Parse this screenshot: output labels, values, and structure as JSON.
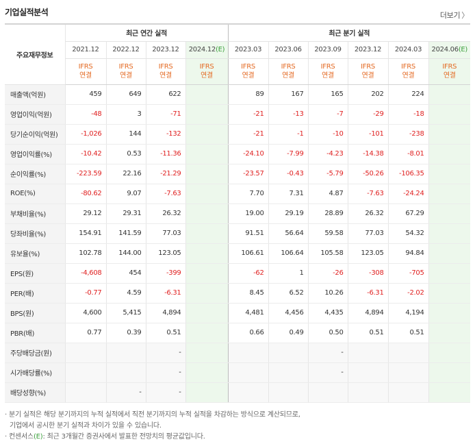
{
  "header": {
    "title": "기업실적분석",
    "more_label": "더보기",
    "more_arrow": "〉"
  },
  "table": {
    "row_header_label": "주요재무정보",
    "annual_group_label": "최근 연간 실적",
    "quarter_group_label": "최근 분기 실적",
    "annual_periods": [
      "2021.12",
      "2022.12",
      "2023.12",
      "2024.12"
    ],
    "quarter_periods": [
      "2023.03",
      "2023.06",
      "2023.09",
      "2023.12",
      "2024.03",
      "2024.06"
    ],
    "estimate_mark": "(E)",
    "basis_line1": "IFRS",
    "basis_line2": "연결",
    "rows": [
      {
        "label": "매출액(억원)",
        "annual": [
          "459",
          "649",
          "622",
          ""
        ],
        "quarter": [
          "89",
          "167",
          "165",
          "202",
          "224",
          ""
        ]
      },
      {
        "label": "영업이익(억원)",
        "annual": [
          "-48",
          "3",
          "-71",
          ""
        ],
        "quarter": [
          "-21",
          "-13",
          "-7",
          "-29",
          "-18",
          ""
        ]
      },
      {
        "label": "당기순이익(억원)",
        "annual": [
          "-1,026",
          "144",
          "-132",
          ""
        ],
        "quarter": [
          "-21",
          "-1",
          "-10",
          "-101",
          "-238",
          ""
        ]
      },
      {
        "label": "영업이익률(%)",
        "annual": [
          "-10.42",
          "0.53",
          "-11.36",
          ""
        ],
        "quarter": [
          "-24.10",
          "-7.99",
          "-4.23",
          "-14.38",
          "-8.01",
          ""
        ]
      },
      {
        "label": "순이익률(%)",
        "annual": [
          "-223.59",
          "22.16",
          "-21.29",
          ""
        ],
        "quarter": [
          "-23.57",
          "-0.43",
          "-5.79",
          "-50.26",
          "-106.35",
          ""
        ]
      },
      {
        "label": "ROE(%)",
        "annual": [
          "-80.62",
          "9.07",
          "-7.63",
          ""
        ],
        "quarter": [
          "7.70",
          "7.31",
          "4.87",
          "-7.63",
          "-24.24",
          ""
        ]
      },
      {
        "label": "부채비율(%)",
        "annual": [
          "29.12",
          "29.31",
          "26.32",
          ""
        ],
        "quarter": [
          "19.00",
          "29.19",
          "28.89",
          "26.32",
          "67.29",
          ""
        ]
      },
      {
        "label": "당좌비율(%)",
        "annual": [
          "154.91",
          "141.59",
          "77.03",
          ""
        ],
        "quarter": [
          "91.51",
          "56.64",
          "59.58",
          "77.03",
          "54.32",
          ""
        ]
      },
      {
        "label": "유보율(%)",
        "annual": [
          "102.78",
          "144.00",
          "123.05",
          ""
        ],
        "quarter": [
          "106.61",
          "106.64",
          "105.58",
          "123.05",
          "94.84",
          ""
        ]
      },
      {
        "label": "EPS(원)",
        "annual": [
          "-4,608",
          "454",
          "-399",
          ""
        ],
        "quarter": [
          "-62",
          "1",
          "-26",
          "-308",
          "-705",
          ""
        ]
      },
      {
        "label": "PER(배)",
        "annual": [
          "-0.77",
          "4.59",
          "-6.31",
          ""
        ],
        "quarter": [
          "8.45",
          "6.52",
          "10.26",
          "-6.31",
          "-2.02",
          ""
        ]
      },
      {
        "label": "BPS(원)",
        "annual": [
          "4,600",
          "5,415",
          "4,894",
          ""
        ],
        "quarter": [
          "4,481",
          "4,456",
          "4,435",
          "4,894",
          "4,194",
          ""
        ]
      },
      {
        "label": "PBR(배)",
        "annual": [
          "0.77",
          "0.39",
          "0.51",
          ""
        ],
        "quarter": [
          "0.66",
          "0.49",
          "0.50",
          "0.51",
          "0.51",
          ""
        ]
      },
      {
        "label": "주당배당금(원)",
        "annual": [
          "",
          "",
          "-",
          ""
        ],
        "quarter": [
          "",
          "",
          "-",
          "",
          "",
          ""
        ]
      },
      {
        "label": "시가배당률(%)",
        "annual": [
          "",
          "",
          "-",
          ""
        ],
        "quarter": [
          "",
          "",
          "-",
          "",
          "",
          ""
        ]
      },
      {
        "label": "배당성향(%)",
        "annual": [
          "",
          "-",
          "-",
          ""
        ],
        "quarter": [
          "",
          "",
          "",
          "",
          "",
          ""
        ]
      }
    ]
  },
  "notes": {
    "line1": "· 분기 실적은 해당 분기까지의 누적 실적에서 직전 분기까지의 누적 실적을 차감하는 방식으로 계산되므로,",
    "line2": "기업에서 공시한 분기 실적과 차이가 있을 수 있습니다.",
    "line3_prefix": "· 컨센서스",
    "line3_mark": "(E)",
    "line3_suffix": ": 최근 3개월간 증권사에서 발표한 전망치의 평균값입니다."
  },
  "colors": {
    "negative": "#e02020",
    "basis": "#e46a23",
    "estimate_bg": "#edf8ec",
    "estimate_mark": "#3a9e3a"
  }
}
